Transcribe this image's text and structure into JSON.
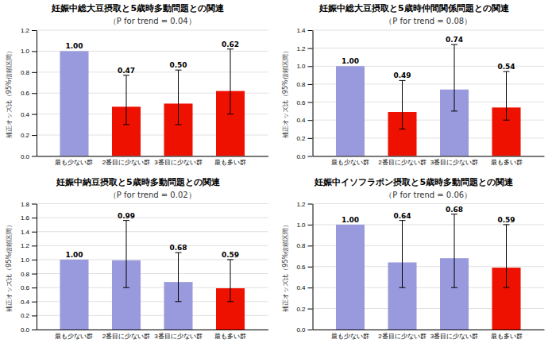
{
  "chart_data": [
    {
      "type": "bar",
      "title": "妊娠中総大豆摂取と5歳時多動問題との関連",
      "subtitle": "（P for trend = 0.04）",
      "ylabel": "補正オッズ比（95%信頼区間）",
      "categories": [
        "最も少ない群",
        "2番目に少ない群",
        "3番目に少ない群",
        "最も多い群"
      ],
      "values": [
        1.0,
        0.47,
        0.5,
        0.62
      ],
      "value_labels": [
        "1.00",
        "0.47",
        "0.50",
        "0.62"
      ],
      "error_low": [
        0.0,
        0.17,
        0.2,
        0.22
      ],
      "error_high": [
        0.0,
        0.3,
        0.32,
        0.4
      ],
      "colors": [
        "#9999dd",
        "#ee1100",
        "#ee1100",
        "#ee1100"
      ],
      "ylim": [
        0,
        1.2
      ],
      "yticks": [
        {
          "value": 0.0,
          "label": "0.0"
        },
        0.2,
        0.4,
        0.6,
        0.8,
        {
          "value": 1.0,
          "label": "1.0"
        },
        1.2
      ],
      "grid": true,
      "data_labels": true
    },
    {
      "type": "bar",
      "title": "妊娠中総大豆摂取と5歳時仲間関係問題との関連",
      "subtitle": "（P for trend = 0.08）",
      "ylabel": "補正オッズ比（95%信頼区間）",
      "categories": [
        "最も少ない群",
        "2番目に少ない群",
        "3番目に少ない群",
        "最も多い群"
      ],
      "values": [
        1.0,
        0.49,
        0.74,
        0.54
      ],
      "value_labels": [
        "1.00",
        "0.49",
        "0.74",
        "0.54"
      ],
      "error_low": [
        0.0,
        0.19,
        0.24,
        0.14
      ],
      "error_high": [
        0.0,
        0.35,
        0.5,
        0.4
      ],
      "colors": [
        "#9999dd",
        "#ee1100",
        "#9999dd",
        "#ee1100"
      ],
      "ylim": [
        0,
        1.4
      ],
      "yticks": [
        {
          "value": 0.0,
          "label": "0.0"
        },
        0.2,
        0.4,
        0.6,
        0.8,
        {
          "value": 1.0,
          "label": "1.0"
        },
        1.2,
        1.4
      ],
      "grid": true,
      "data_labels": true
    },
    {
      "type": "bar",
      "title": "妊娠中納豆摂取と5歳時多動問題との関連",
      "subtitle": "（P for trend = 0.02）",
      "ylabel": "補正オッズ比（95%信頼区間）",
      "categories": [
        "最も少ない群",
        "2番目に少ない群",
        "3番目に少ない群",
        "最も多い群"
      ],
      "values": [
        1.0,
        0.99,
        0.68,
        0.59
      ],
      "value_labels": [
        "1.00",
        "0.99",
        "0.68",
        "0.59"
      ],
      "error_low": [
        0.0,
        0.39,
        0.28,
        0.19
      ],
      "error_high": [
        0.0,
        0.57,
        0.42,
        0.41
      ],
      "colors": [
        "#9999dd",
        "#9999dd",
        "#9999dd",
        "#ee1100"
      ],
      "ylim": [
        0,
        1.8
      ],
      "yticks": [
        {
          "value": 0.0,
          "label": "0.0"
        },
        0.2,
        0.4,
        0.6,
        0.8,
        {
          "value": 1.0,
          "label": "1.0"
        },
        1.2,
        1.4,
        1.6,
        1.8
      ],
      "grid": true,
      "data_labels": true
    },
    {
      "type": "bar",
      "title": "妊娠中イソフラボン摂取と5歳時多動問題との関連",
      "subtitle": "（P for trend = 0.06）",
      "ylabel": "補正オッズ比（95%信頼区間）",
      "categories": [
        "最も少ない群",
        "2番目に少ない群",
        "3番目に少ない群",
        "最も多い群"
      ],
      "values": [
        1.0,
        0.64,
        0.68,
        0.59
      ],
      "value_labels": [
        "1.00",
        "0.64",
        "0.68",
        "0.59"
      ],
      "error_low": [
        0.0,
        0.24,
        0.28,
        0.19
      ],
      "error_high": [
        0.0,
        0.4,
        0.42,
        0.41
      ],
      "colors": [
        "#9999dd",
        "#9999dd",
        "#9999dd",
        "#ee1100"
      ],
      "ylim": [
        0,
        1.2
      ],
      "yticks": [
        {
          "value": 0.0,
          "label": "0.0"
        },
        0.2,
        0.4,
        0.6,
        0.8,
        {
          "value": 1.0,
          "label": "1.0"
        },
        1.2
      ],
      "grid": true,
      "data_labels": true
    }
  ]
}
